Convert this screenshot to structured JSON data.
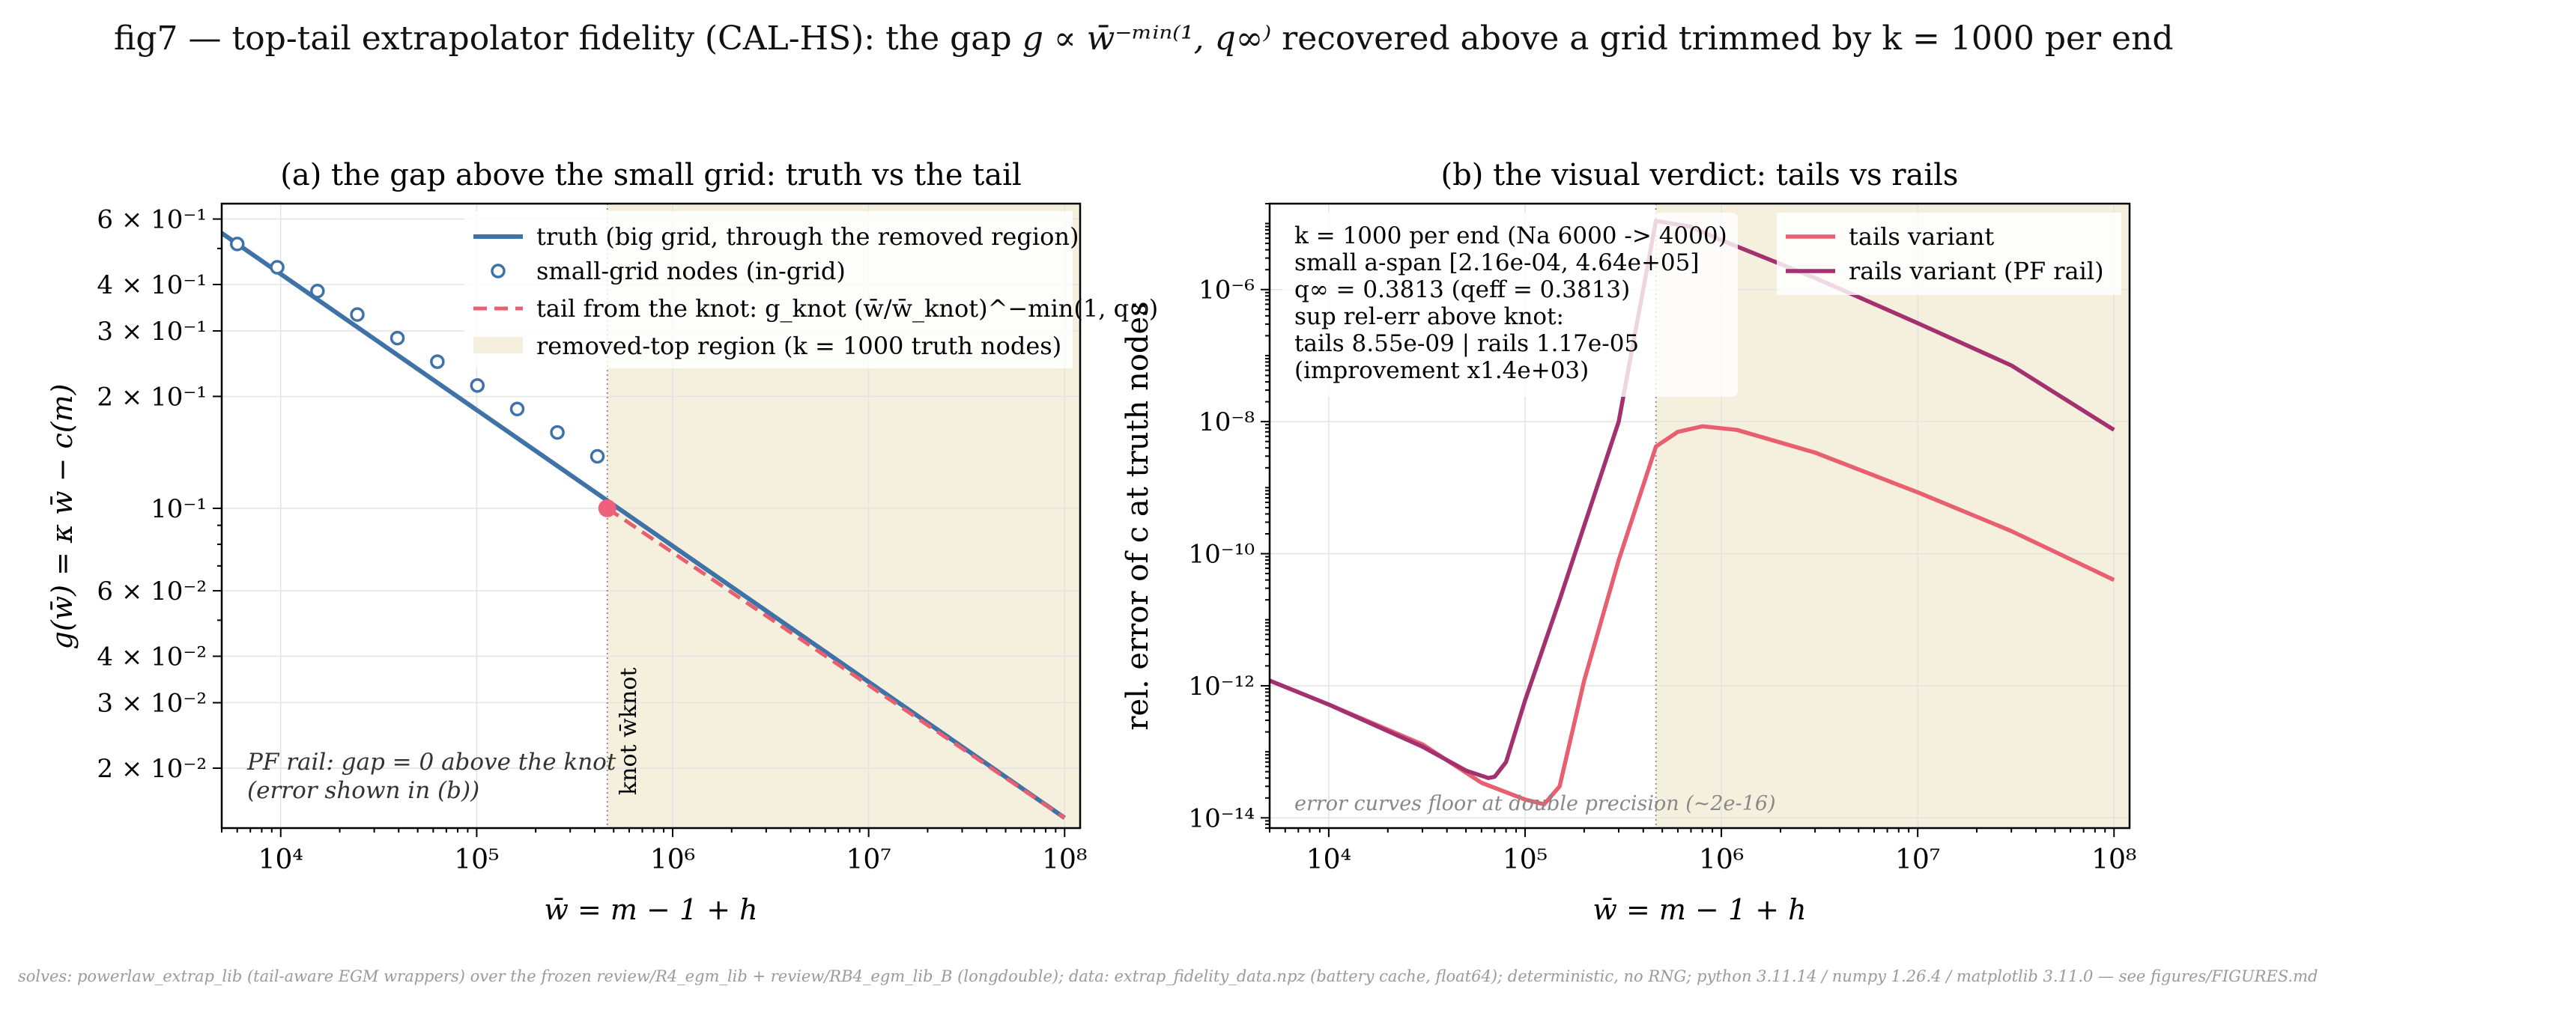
{
  "suptitle": {
    "prefix": "fig7 — top-tail extrapolator fidelity (CAL-HS): the gap ",
    "math": "g ∝ w̄⁻ᵐⁱⁿ⁽¹, q∞⁾",
    "suffix": " recovered above a grid trimmed by k = 1000 per end"
  },
  "footer": "solves: powerlaw_extrap_lib (tail-aware EGM wrappers) over the frozen review/R4_egm_lib + review/RB4_egm_lib_B (longdouble); data: extrap_fidelity_data.npz (battery cache, float64); deterministic, no RNG; python 3.11.14 / numpy 1.26.4 / matplotlib 3.11.0 — see figures/FIGURES.md",
  "colors": {
    "truth": "#3f72a6",
    "tail": "#e8606f",
    "rails": "#a3306f",
    "removed_region": "#f5f0de",
    "knot": "#ef607a"
  },
  "chart_data": [
    {
      "type": "line",
      "panel": "a",
      "title": "(a)  the gap above the small grid: truth vs the tail",
      "xlabel": "w̄ = m − 1 + h",
      "ylabel": "g(w̄) = κ w̄ − c(m)",
      "xscale": "log",
      "yscale": "log",
      "xlim": [
        5000,
        120000000
      ],
      "ylim": [
        0.0138,
        0.66
      ],
      "x_ticks": [
        10000,
        100000,
        1000000,
        10000000,
        100000000
      ],
      "x_tick_labels": [
        "10⁴",
        "10⁵",
        "10⁶",
        "10⁷",
        "10⁸"
      ],
      "y_ticks": [
        0.02,
        0.03,
        0.04,
        0.06,
        0.1,
        0.2,
        0.3,
        0.4,
        0.6
      ],
      "y_tick_labels": [
        "2 × 10⁻²",
        "3 × 10⁻²",
        "4 × 10⁻²",
        "6 × 10⁻²",
        "10⁻¹",
        "2 × 10⁻¹",
        "3 × 10⁻¹",
        "4 × 10⁻¹",
        "6 × 10⁻¹"
      ],
      "grid": true,
      "legend_position": "top-right",
      "knot": {
        "x": 464000,
        "y": 0.1,
        "label": "knot w̄knot"
      },
      "removed_region": {
        "x_from": 464000,
        "x_to": 120000000
      },
      "series": [
        {
          "name": "truth (big grid, through the removed region)",
          "style": "solid",
          "x": [
            5000,
            100000000
          ],
          "y": [
            0.55,
            0.0147
          ]
        },
        {
          "name": "small-grid nodes (in-grid)",
          "style": "markers",
          "x": [
            6000,
            9600,
            15400,
            24600,
            39400,
            63000,
            100800,
            161000,
            258000,
            413000
          ],
          "y": [
            0.514,
            0.445,
            0.384,
            0.332,
            0.287,
            0.248,
            0.214,
            0.185,
            0.16,
            0.138
          ]
        },
        {
          "name": "tail from the knot: g_knot (w̄/w̄_knot)^−min(1, q∞)",
          "style": "dashed",
          "x": [
            464000,
            100000000
          ],
          "y": [
            0.1,
            0.0147
          ]
        },
        {
          "name": "removed-top region (k = 1000 truth nodes)",
          "style": "band"
        }
      ],
      "annotation": [
        "PF rail: gap = 0 above the knot",
        "(error shown in (b))"
      ]
    },
    {
      "type": "line",
      "panel": "b",
      "title": "(b)  the visual verdict: tails vs rails",
      "xlabel": "w̄ = m − 1 + h",
      "ylabel": "rel. error of c at truth nodes",
      "xscale": "log",
      "yscale": "log",
      "xlim": [
        5000,
        120000000
      ],
      "ylim": [
        7e-15,
        2e-05
      ],
      "x_ticks": [
        10000,
        100000,
        1000000,
        10000000,
        100000000
      ],
      "x_tick_labels": [
        "10⁴",
        "10⁵",
        "10⁶",
        "10⁷",
        "10⁸"
      ],
      "y_ticks": [
        1e-14,
        1e-12,
        1e-10,
        1e-08,
        1e-06
      ],
      "y_tick_labels": [
        "10⁻¹⁴",
        "10⁻¹²",
        "10⁻¹⁰",
        "10⁻⁸",
        "10⁻⁶"
      ],
      "grid": true,
      "legend_position": "top-right",
      "knot_x": 464000,
      "removed_region": {
        "x_from": 464000,
        "x_to": 120000000
      },
      "series": [
        {
          "name": "tails variant",
          "x": [
            5000,
            10000,
            30000,
            60000,
            100000,
            125000,
            150000,
            200000,
            300000,
            464000,
            600000,
            800000,
            1200000,
            3000000,
            10000000,
            30000000,
            100000000
          ],
          "y": [
            1.2e-12,
            5.2e-13,
            1.3e-13,
            3.4e-14,
            1.9e-14,
            1.6e-14,
            3e-14,
            1.2e-12,
            8e-11,
            4.2e-09,
            7e-09,
            8.5e-09,
            7.5e-09,
            3.4e-09,
            8.5e-10,
            2.2e-10,
            4e-11
          ]
        },
        {
          "name": "rails variant (PF rail)",
          "x": [
            5000,
            10000,
            30000,
            50000,
            65000,
            70000,
            80000,
            100000,
            150000,
            300000,
            464000,
            700000,
            1000000,
            3000000,
            10000000,
            30000000,
            100000000
          ],
          "y": [
            1.2e-12,
            5.2e-13,
            1.2e-13,
            5.2e-14,
            4e-14,
            4.2e-14,
            7e-14,
            6e-13,
            2e-11,
            1e-08,
            1.1e-05,
            8.9e-06,
            5.6e-06,
            1.5e-06,
            3.1e-07,
            7.1e-08,
            7.5e-09
          ]
        }
      ],
      "info_box": [
        "k = 1000 per end (Na 6000 -> 4000)",
        "small a-span [2.16e-04, 4.64e+05]",
        "q∞ = 0.3813  (qeff = 0.3813)",
        "sup rel-err above knot:",
        "  tails 8.55e-09 | rails 1.17e-05",
        "  (improvement x1.4e+03)"
      ],
      "floor_note": "error curves floor at double precision (~2e-16)"
    }
  ]
}
